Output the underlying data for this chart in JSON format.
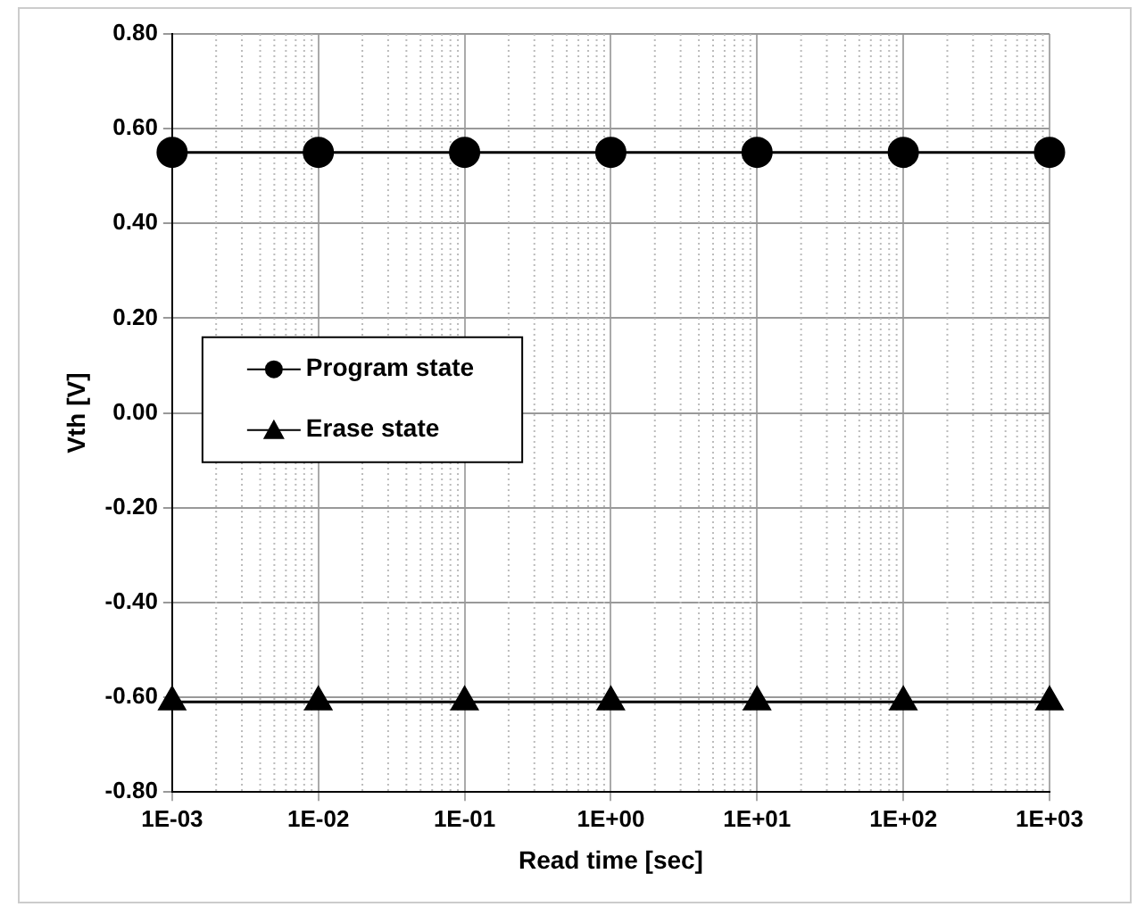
{
  "chart_data": {
    "type": "line",
    "xlabel": "Read time [sec]",
    "ylabel": "Vth [V]",
    "x": [
      0.001,
      0.01,
      0.1,
      1,
      10,
      100,
      1000
    ],
    "series": [
      {
        "name": "Program state",
        "color": "#000000",
        "marker": "circle",
        "values": [
          0.55,
          0.55,
          0.55,
          0.55,
          0.55,
          0.55,
          0.55
        ]
      },
      {
        "name": "Erase state",
        "color": "#000000",
        "marker": "triangle",
        "values": [
          -0.61,
          -0.61,
          -0.61,
          -0.61,
          -0.61,
          -0.61,
          -0.61
        ]
      }
    ],
    "log": "x",
    "xlim": [
      0.001,
      1000
    ],
    "xticks": [
      {
        "value": 0.001,
        "label": "1E-03"
      },
      {
        "value": 0.01,
        "label": "1E-02"
      },
      {
        "value": 0.1,
        "label": "1E-01"
      },
      {
        "value": 1,
        "label": "1E+00"
      },
      {
        "value": 10,
        "label": "1E+01"
      },
      {
        "value": 100,
        "label": "1E+02"
      },
      {
        "value": 1000,
        "label": "1E+03"
      }
    ],
    "ylim": [
      -0.8,
      0.8
    ],
    "yticks": [
      {
        "value": -0.8,
        "label": "-0.80"
      },
      {
        "value": -0.6,
        "label": "-0.60"
      },
      {
        "value": -0.4,
        "label": "-0.40"
      },
      {
        "value": -0.2,
        "label": "-0.20"
      },
      {
        "value": 0,
        "label": "0.00"
      },
      {
        "value": 0.2,
        "label": "0.20"
      },
      {
        "value": 0.4,
        "label": "0.40"
      },
      {
        "value": 0.6,
        "label": "0.60"
      },
      {
        "value": 0.8,
        "label": "0.80"
      }
    ],
    "grid": true,
    "legend": "left",
    "line_style": "solid"
  }
}
